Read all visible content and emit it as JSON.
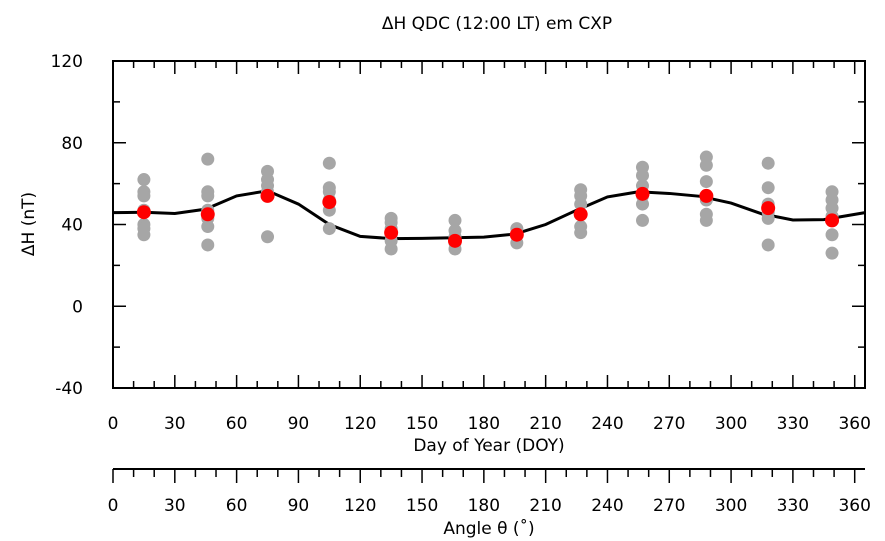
{
  "chart_data": {
    "type": "scatter",
    "title": "ΔH QDC (12:00 LT) em CXP",
    "xlabel": "Day of Year (DOY)",
    "ylabel": "ΔH (nT)",
    "secondary_xlabel": "Angle θ (˚)",
    "xlim": [
      0,
      365
    ],
    "ylim": [
      -40,
      120
    ],
    "x_ticks": [
      "0",
      "30",
      "60",
      "90",
      "120",
      "150",
      "180",
      "210",
      "240",
      "270",
      "300",
      "330",
      "360"
    ],
    "x_tick_values": [
      0,
      30,
      60,
      90,
      120,
      150,
      180,
      210,
      240,
      270,
      300,
      330,
      360
    ],
    "y_ticks": [
      "-40",
      "0",
      "40",
      "80",
      "120"
    ],
    "y_tick_values": [
      -40,
      0,
      40,
      80,
      120
    ],
    "secondary_x_ticks": [
      "0",
      "30",
      "60",
      "90",
      "120",
      "150",
      "180",
      "210",
      "240",
      "270",
      "300",
      "330",
      "360"
    ],
    "secondary_x_tick_values": [
      0,
      30,
      60,
      90,
      120,
      150,
      180,
      210,
      240,
      270,
      300,
      330,
      360
    ],
    "series": [
      {
        "kind": "scatter",
        "color": "#a6a6a6",
        "points": [
          [
            15,
            62
          ],
          [
            15,
            56
          ],
          [
            15,
            54
          ],
          [
            15,
            47
          ],
          [
            15,
            40
          ],
          [
            15,
            38
          ],
          [
            15,
            35
          ],
          [
            46,
            72
          ],
          [
            46,
            56
          ],
          [
            46,
            54
          ],
          [
            46,
            47
          ],
          [
            46,
            43
          ],
          [
            46,
            39
          ],
          [
            46,
            30
          ],
          [
            75,
            66
          ],
          [
            75,
            62
          ],
          [
            75,
            59
          ],
          [
            75,
            56
          ],
          [
            75,
            34
          ],
          [
            105,
            70
          ],
          [
            105,
            58
          ],
          [
            105,
            56
          ],
          [
            105,
            52
          ],
          [
            105,
            47
          ],
          [
            105,
            38
          ],
          [
            135,
            43
          ],
          [
            135,
            41
          ],
          [
            135,
            38
          ],
          [
            135,
            35
          ],
          [
            135,
            32
          ],
          [
            135,
            28
          ],
          [
            166,
            42
          ],
          [
            166,
            37
          ],
          [
            166,
            34
          ],
          [
            166,
            31
          ],
          [
            166,
            28
          ],
          [
            196,
            38
          ],
          [
            196,
            35
          ],
          [
            196,
            31
          ],
          [
            227,
            57
          ],
          [
            227,
            54
          ],
          [
            227,
            50
          ],
          [
            227,
            45
          ],
          [
            227,
            39
          ],
          [
            227,
            36
          ],
          [
            257,
            68
          ],
          [
            257,
            64
          ],
          [
            257,
            59
          ],
          [
            257,
            54
          ],
          [
            257,
            50
          ],
          [
            257,
            42
          ],
          [
            288,
            73
          ],
          [
            288,
            69
          ],
          [
            288,
            61
          ],
          [
            288,
            52
          ],
          [
            288,
            45
          ],
          [
            288,
            42
          ],
          [
            318,
            70
          ],
          [
            318,
            58
          ],
          [
            318,
            50
          ],
          [
            318,
            46
          ],
          [
            318,
            43
          ],
          [
            318,
            30
          ],
          [
            349,
            56
          ],
          [
            349,
            52
          ],
          [
            349,
            48
          ],
          [
            349,
            44
          ],
          [
            349,
            35
          ],
          [
            349,
            26
          ]
        ]
      },
      {
        "kind": "scatter",
        "color": "#ff0000",
        "points": [
          [
            15,
            46
          ],
          [
            46,
            45
          ],
          [
            75,
            54
          ],
          [
            105,
            51
          ],
          [
            135,
            36
          ],
          [
            166,
            32
          ],
          [
            196,
            35
          ],
          [
            227,
            45
          ],
          [
            257,
            55
          ],
          [
            288,
            54
          ],
          [
            318,
            48
          ],
          [
            349,
            42
          ]
        ]
      },
      {
        "kind": "line",
        "color": "#000000",
        "points": [
          [
            0,
            45.8
          ],
          [
            15,
            46
          ],
          [
            30,
            45.4
          ],
          [
            45,
            47.5
          ],
          [
            60,
            54
          ],
          [
            75,
            56.5
          ],
          [
            90,
            50
          ],
          [
            105,
            40
          ],
          [
            120,
            34.2
          ],
          [
            135,
            33.1
          ],
          [
            150,
            33.2
          ],
          [
            165,
            33.5
          ],
          [
            180,
            33.8
          ],
          [
            195,
            35.3
          ],
          [
            210,
            40
          ],
          [
            225,
            47
          ],
          [
            240,
            53.5
          ],
          [
            255,
            56
          ],
          [
            270,
            55.2
          ],
          [
            285,
            53.8
          ],
          [
            300,
            50.5
          ],
          [
            315,
            45.2
          ],
          [
            330,
            42.2
          ],
          [
            345,
            42.4
          ],
          [
            365,
            45.8
          ]
        ]
      }
    ]
  }
}
